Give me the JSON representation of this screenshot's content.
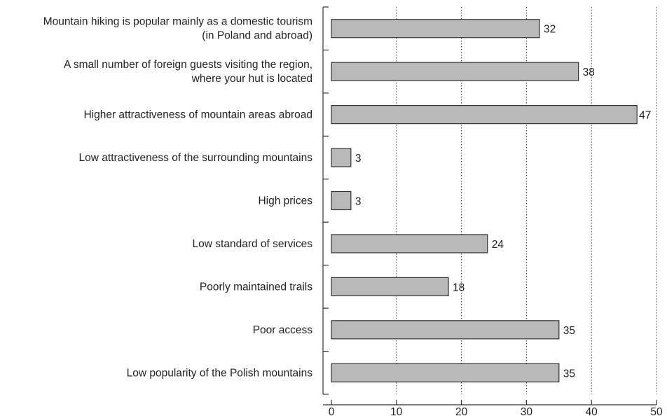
{
  "chart_data": {
    "type": "bar",
    "orientation": "horizontal",
    "categories": [
      [
        "Mountain hiking is popular mainly as a domestic tourism",
        "(in Poland and abroad)"
      ],
      [
        "A small number of foreign guests visiting the region,",
        "where your hut is located"
      ],
      [
        "Higher attractiveness of mountain areas abroad"
      ],
      [
        "Low attractiveness of the surrounding mountains"
      ],
      [
        "High prices"
      ],
      [
        "Low standard of services"
      ],
      [
        "Poorly maintained trails"
      ],
      [
        "Poor access"
      ],
      [
        "Low popularity of the Polish mountains"
      ]
    ],
    "values": [
      32,
      38,
      47,
      3,
      3,
      24,
      18,
      35,
      35
    ],
    "xlim": [
      0,
      50
    ],
    "xticks": [
      0,
      10,
      20,
      30,
      40,
      50
    ],
    "grid": "vertical dotted",
    "title": "",
    "xlabel": "",
    "ylabel": ""
  },
  "colors": {
    "bar_fill": "#b9b9b9",
    "bar_stroke": "#333333",
    "axis": "#333333",
    "grid": "#333333"
  }
}
